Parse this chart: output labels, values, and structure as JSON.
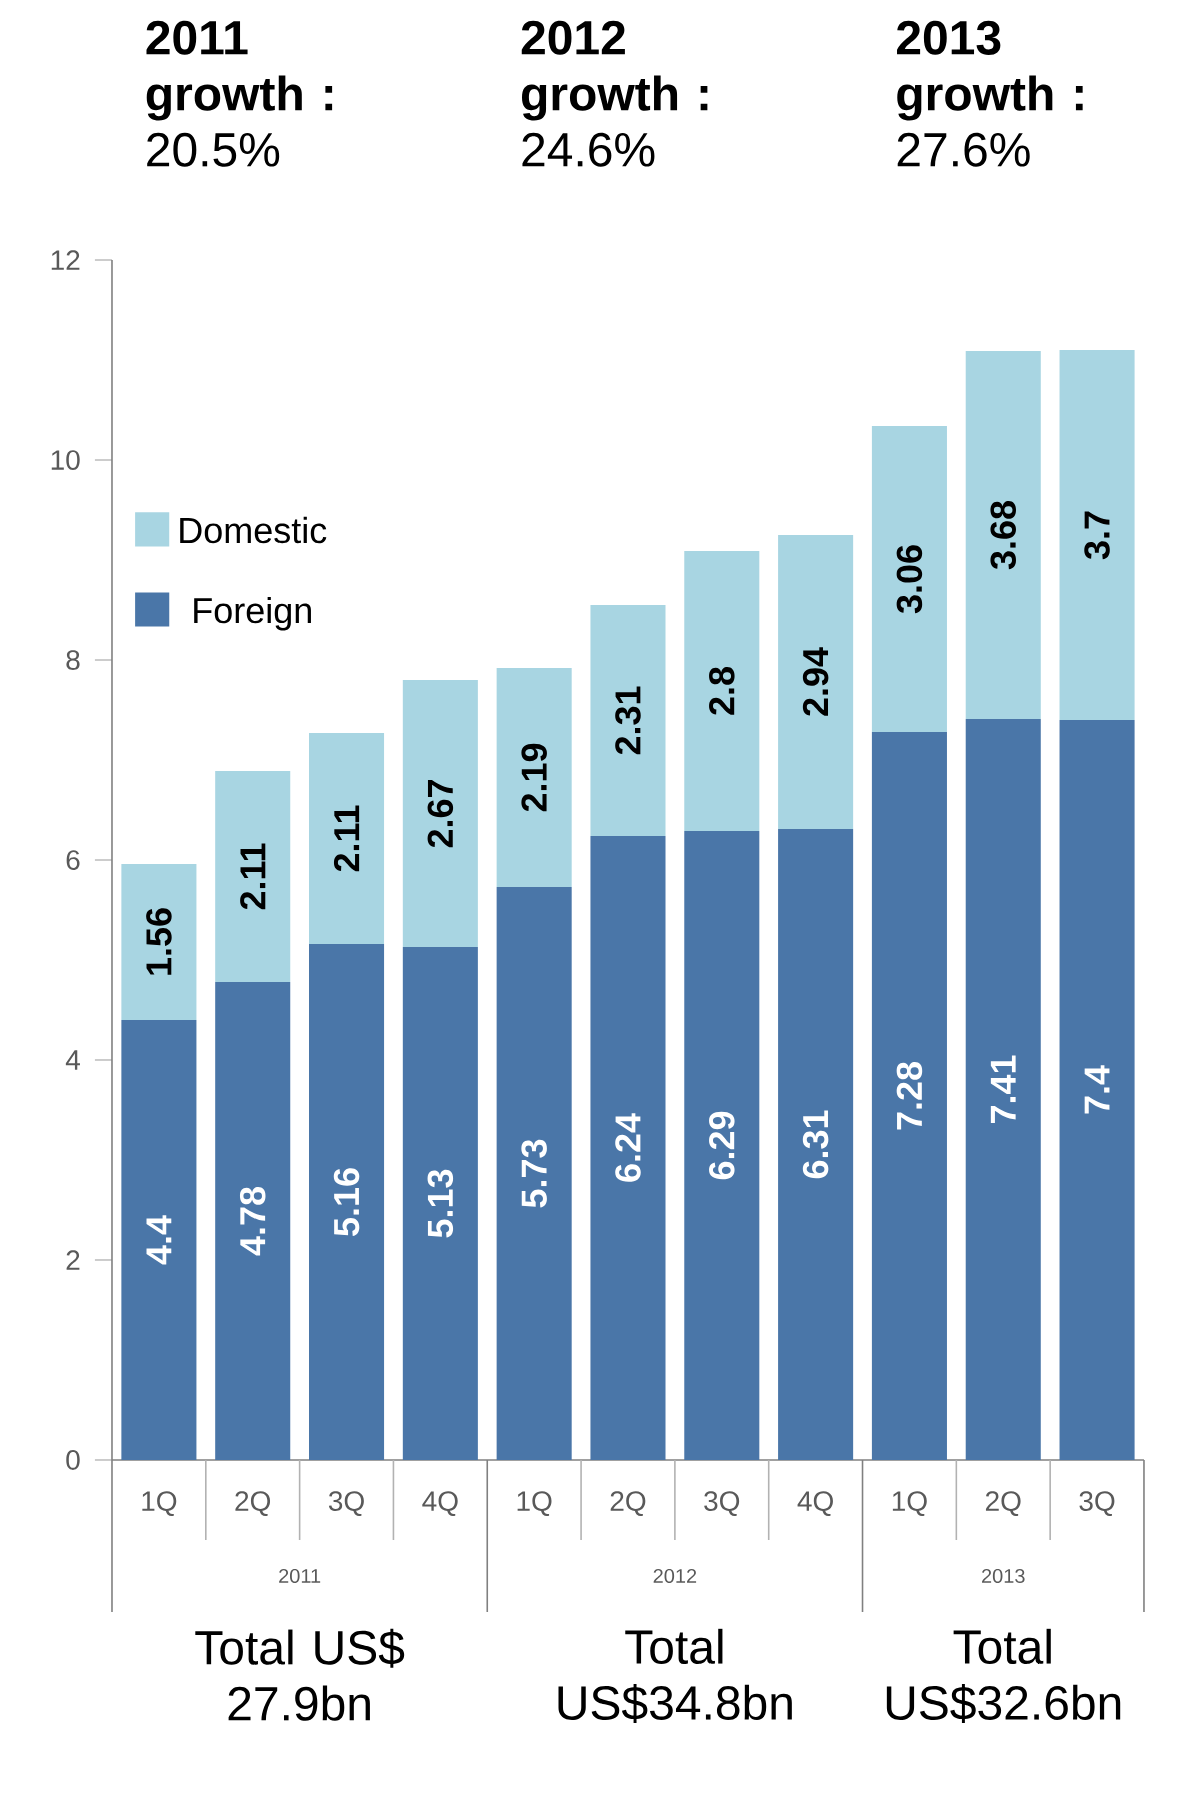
{
  "chart_data": {
    "type": "bar",
    "stacked": true,
    "categories": [
      "1Q",
      "2Q",
      "3Q",
      "4Q",
      "1Q",
      "2Q",
      "3Q",
      "4Q",
      "1Q",
      "2Q",
      "3Q"
    ],
    "series": [
      {
        "name": "Foreign",
        "color": "#4a76a8",
        "values": [
          4.4,
          4.78,
          5.16,
          5.13,
          5.73,
          6.24,
          6.29,
          6.31,
          7.28,
          7.41,
          7.4
        ]
      },
      {
        "name": "Domestic",
        "color": "#a8d5e2",
        "values": [
          1.56,
          2.11,
          2.11,
          2.67,
          2.19,
          2.31,
          2.8,
          2.94,
          3.06,
          3.68,
          3.7
        ]
      }
    ],
    "ylim": [
      0,
      12
    ],
    "yticks": [
      0,
      2,
      4,
      6,
      8,
      10,
      12
    ],
    "data_labels": true,
    "legend": "top left",
    "annotations": [
      "**2011 growth :** 20.5%",
      "**2012 growth :** 24.6%",
      "**2013 growth :** 27.6%",
      "2011",
      "2012",
      "2013",
      "Total US$ 27.9bn",
      "Total US$34.8bn",
      "Total US$32.6bn"
    ]
  }
}
